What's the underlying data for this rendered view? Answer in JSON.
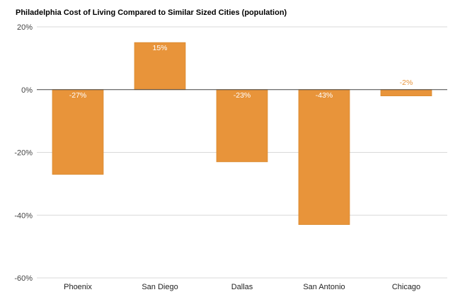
{
  "chart_data": {
    "type": "bar",
    "title": "Philadelphia Cost of Living Compared to Similar Sized Cities (population)",
    "categories": [
      "Phoenix",
      "San Diego",
      "Dallas",
      "San Antonio",
      "Chicago"
    ],
    "values": [
      -27,
      15,
      -23,
      -43,
      -2
    ],
    "data_labels": [
      "-27%",
      "15%",
      "-23%",
      "-43%",
      "-2%"
    ],
    "ylim": [
      -60,
      20
    ],
    "yticks": [
      20,
      0,
      -20,
      -40,
      -60
    ],
    "ytick_labels": [
      "20%",
      "0%",
      "-20%",
      "-40%",
      "-60%"
    ],
    "grid": true,
    "bar_color": "#e8943a",
    "bar_edge_color": "#d98a2e",
    "label_color_inside": "#ffffff",
    "label_color_outside": "#e8943a"
  }
}
